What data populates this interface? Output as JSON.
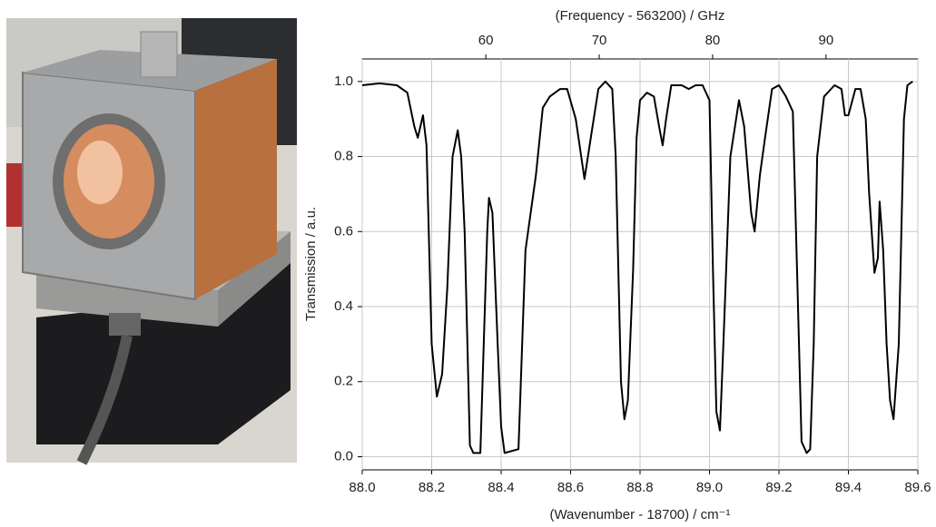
{
  "chart_data": {
    "type": "line",
    "title": "(Frequency - 563200) / GHz",
    "xlabel": "(Wavenumber - 18700) / cm⁻¹",
    "ylabel": "Transmission / a.u.",
    "color": "#000000",
    "grid": true,
    "x": [
      88.0,
      88.05,
      88.1,
      88.13,
      88.15,
      88.16,
      88.175,
      88.185,
      88.2,
      88.215,
      88.23,
      88.245,
      88.26,
      88.275,
      88.285,
      88.295,
      88.31,
      88.32,
      88.34,
      88.36,
      88.365,
      88.375,
      88.39,
      88.4,
      88.41,
      88.45,
      88.47,
      88.5,
      88.52,
      88.54,
      88.57,
      88.59,
      88.615,
      88.64,
      88.66,
      88.68,
      88.7,
      88.72,
      88.73,
      88.745,
      88.755,
      88.765,
      88.78,
      88.79,
      88.8,
      88.82,
      88.84,
      88.855,
      88.865,
      88.875,
      88.89,
      88.92,
      88.94,
      88.96,
      88.98,
      89.0,
      89.01,
      89.02,
      89.03,
      89.04,
      89.06,
      89.085,
      89.1,
      89.12,
      89.13,
      89.145,
      89.16,
      89.18,
      89.2,
      89.22,
      89.24,
      89.255,
      89.265,
      89.28,
      89.29,
      89.3,
      89.31,
      89.33,
      89.36,
      89.38,
      89.39,
      89.4,
      89.42,
      89.435,
      89.45,
      89.46,
      89.475,
      89.485,
      89.49,
      89.5,
      89.51,
      89.52,
      89.53,
      89.545,
      89.56,
      89.57,
      89.585
    ],
    "values": [
      0.99,
      0.995,
      0.99,
      0.97,
      0.88,
      0.85,
      0.91,
      0.83,
      0.3,
      0.16,
      0.22,
      0.45,
      0.8,
      0.87,
      0.8,
      0.6,
      0.03,
      0.01,
      0.01,
      0.6,
      0.69,
      0.65,
      0.3,
      0.08,
      0.01,
      0.02,
      0.55,
      0.75,
      0.93,
      0.96,
      0.98,
      0.98,
      0.9,
      0.74,
      0.86,
      0.98,
      1.0,
      0.98,
      0.8,
      0.2,
      0.1,
      0.15,
      0.5,
      0.85,
      0.95,
      0.97,
      0.96,
      0.88,
      0.83,
      0.9,
      0.99,
      0.99,
      0.98,
      0.99,
      0.99,
      0.95,
      0.5,
      0.12,
      0.07,
      0.3,
      0.8,
      0.95,
      0.88,
      0.65,
      0.6,
      0.75,
      0.85,
      0.98,
      0.99,
      0.96,
      0.92,
      0.4,
      0.04,
      0.01,
      0.02,
      0.3,
      0.8,
      0.96,
      0.99,
      0.98,
      0.91,
      0.91,
      0.98,
      0.98,
      0.9,
      0.7,
      0.49,
      0.53,
      0.68,
      0.55,
      0.3,
      0.15,
      0.1,
      0.3,
      0.9,
      0.99,
      1.0
    ],
    "xlim": [
      88.0,
      89.6
    ],
    "xticks": [
      {
        "value": 88.0,
        "label": "88.0"
      },
      {
        "value": 88.2,
        "label": "88.2"
      },
      {
        "value": 88.4,
        "label": "88.4"
      },
      {
        "value": 88.6,
        "label": "88.6"
      },
      {
        "value": 88.8,
        "label": "88.8"
      },
      {
        "value": 89.0,
        "label": "89.0"
      },
      {
        "value": 89.2,
        "label": "89.2"
      },
      {
        "value": 89.4,
        "label": "89.4"
      },
      {
        "value": 89.6,
        "label": "89.6"
      }
    ],
    "ylim": [
      -0.035,
      1.06
    ],
    "yticks": [
      {
        "value": 0,
        "label": "0.0"
      },
      {
        "value": 0.2,
        "label": "0.2"
      },
      {
        "value": 0.4,
        "label": "0.4"
      },
      {
        "value": 0.6,
        "label": "0.6"
      },
      {
        "value": 0.8,
        "label": "0.8"
      },
      {
        "value": 1,
        "label": "1.0"
      }
    ],
    "x2lim": [
      49.1,
      98.1
    ],
    "x2ticks": [
      60,
      70,
      80,
      90
    ]
  }
}
